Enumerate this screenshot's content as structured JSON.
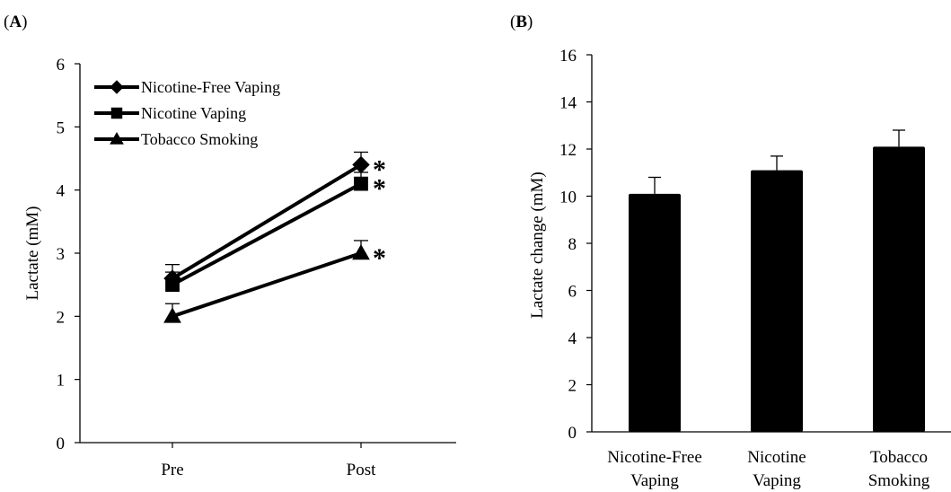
{
  "chart_data": [
    {
      "panel": "(A)",
      "type": "line",
      "categories": [
        "Pre",
        "Post"
      ],
      "ylabel": "Lactate (mM)",
      "ylim": [
        0,
        6
      ],
      "yticks": [
        0,
        1,
        2,
        3,
        4,
        5,
        6
      ],
      "grid": false,
      "legend": "top-left",
      "series": [
        {
          "name": "Nicotine-Free Vaping",
          "marker": "diamond",
          "values": [
            2.6,
            4.4
          ],
          "errors": [
            0.22,
            0.2
          ],
          "annotations": [
            "",
            "*"
          ]
        },
        {
          "name": "Nicotine Vaping",
          "marker": "square",
          "values": [
            2.5,
            4.1
          ],
          "errors": [
            0.2,
            0.18
          ],
          "annotations": [
            "",
            "*"
          ]
        },
        {
          "name": "Tobacco Smoking",
          "marker": "triangle",
          "values": [
            2.0,
            3.0
          ],
          "errors": [
            0.2,
            0.2
          ],
          "annotations": [
            "",
            "*"
          ]
        }
      ]
    },
    {
      "panel": "(B)",
      "type": "bar",
      "categories": [
        [
          "Nicotine-Free",
          "Vaping"
        ],
        [
          "Nicotine",
          "Vaping"
        ],
        [
          "Tobacco",
          "Smoking"
        ]
      ],
      "values": [
        10.1,
        11.1,
        12.1
      ],
      "errors": [
        0.7,
        0.6,
        0.7
      ],
      "ylabel": "Lactate change (mM)",
      "ylim": [
        0,
        16
      ],
      "yticks": [
        0,
        2,
        4,
        6,
        8,
        10,
        12,
        14,
        16
      ],
      "grid": false,
      "bar_color": "#000000"
    }
  ]
}
